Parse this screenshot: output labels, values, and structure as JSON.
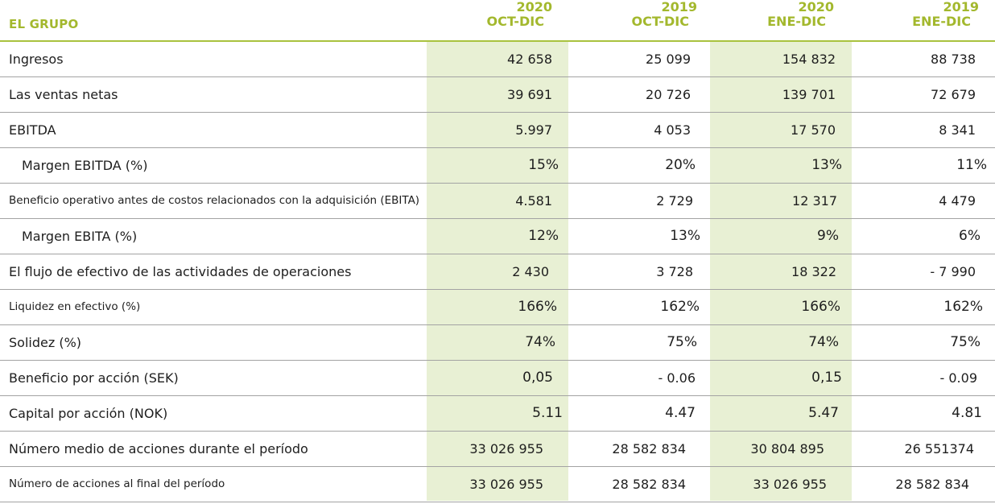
{
  "header": {
    "title": "EL GRUPO",
    "columns": [
      {
        "year": "2020",
        "period": "OCT-DIC"
      },
      {
        "year": "2019",
        "period": "OCT-DIC"
      },
      {
        "year": "2020",
        "period": "ENE-DIC"
      },
      {
        "year": "2019",
        "period": "ENE-DIC"
      }
    ]
  },
  "colors": {
    "accent": "#a3b82d",
    "highlight_column": "#e8f0d4",
    "row_divider": "#a3a3a3"
  },
  "rows": [
    {
      "label": "Ingresos",
      "values": [
        "42 658",
        "25 099",
        "154 832",
        "88 738"
      ]
    },
    {
      "label": "Las ventas netas",
      "values": [
        "39 691",
        "20 726",
        "139 701",
        "72 679"
      ]
    },
    {
      "label": "EBITDA",
      "values": [
        "5.997",
        "4 053",
        "17 570",
        "8 341"
      ]
    },
    {
      "label": "Margen EBITDA (%)",
      "values": [
        "15%",
        "20%",
        "13%",
        "11%"
      ]
    },
    {
      "label": "Beneficio operativo antes de costos relacionados con la adquisición (EBITA)",
      "values": [
        "4.581",
        "2 729",
        "12 317",
        "4 479"
      ]
    },
    {
      "label": "Margen EBITA (%)",
      "values": [
        "12%",
        "13%",
        "9%",
        "6%"
      ]
    },
    {
      "label": "El flujo de efectivo de las actividades de operaciones",
      "values": [
        "2 430",
        "3 728",
        "18 322",
        "- 7 990"
      ]
    },
    {
      "label": "Liquidez en efectivo (%)",
      "values": [
        "166%",
        "162%",
        "166%",
        "162%"
      ]
    },
    {
      "label": "Solidez (%)",
      "values": [
        "74%",
        "75%",
        "74%",
        "75%"
      ]
    },
    {
      "label": "Beneficio por acción (SEK)",
      "values": [
        "0,05",
        "- 0.06",
        "0,15",
        "- 0.09"
      ]
    },
    {
      "label": "Capital por acción (NOK)",
      "values": [
        "5.11",
        "4.47",
        "5.47",
        "4.81"
      ]
    },
    {
      "label": "Número medio de acciones durante el período",
      "values": [
        "33 026 955",
        "28 582 834",
        "30 804 895",
        "26 551374"
      ]
    },
    {
      "label": "Número de acciones al final del período",
      "values": [
        "33 026 955",
        "28 582 834",
        "33 026 955",
        "28 582 834"
      ]
    }
  ]
}
